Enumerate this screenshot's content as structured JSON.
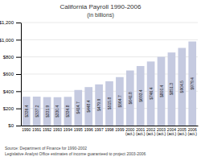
{
  "chart_data": {
    "type": "bar",
    "title": "California Payroll 1990-2006",
    "subtitle": "(in billions)",
    "categories": [
      "1990",
      "1991",
      "1992",
      "1993",
      "1994",
      "1995",
      "1996",
      "1997",
      "1998",
      "1999",
      "2000\n(act.)",
      "2001\n(act.)",
      "2002\n(act.)",
      "2003\n(act.)",
      "2004\n(act.)",
      "2005\n(act.)",
      "2006\n(act.)"
    ],
    "values": [
      336.4,
      337.2,
      331.9,
      330.4,
      334.8,
      414.7,
      448.4,
      479.9,
      515.8,
      564.7,
      641.8,
      693.4,
      746.4,
      800.4,
      851.3,
      904.5,
      979.4
    ],
    "value_labels": [
      "$336.4",
      "$337.2",
      "$331.9",
      "$330.4",
      "$334.8",
      "$414.7",
      "$448.4",
      "$479.9",
      "$515.8",
      "$564.7",
      "$641.8",
      "$693.4",
      "$746.4",
      "$800.4",
      "$851.3",
      "$904.5",
      "$979.4"
    ],
    "data_labels": true,
    "color": "#c5cae0",
    "ylim": [
      0,
      1200
    ],
    "yticks": [
      {
        "value": 0,
        "label": "$0"
      },
      {
        "value": 200,
        "label": "$200"
      },
      {
        "value": 400,
        "label": "$400"
      },
      {
        "value": 600,
        "label": "$600"
      },
      {
        "value": 800,
        "label": "$800"
      },
      {
        "value": 1000,
        "label": "$1,000"
      },
      {
        "value": 1200,
        "label": "$1,200"
      }
    ],
    "grid": true,
    "annotations": [
      "Source: Department of Finance for 1990-2002",
      "Legislative Analyst Office estimates of income guaranteed to project 2003-2006"
    ]
  }
}
